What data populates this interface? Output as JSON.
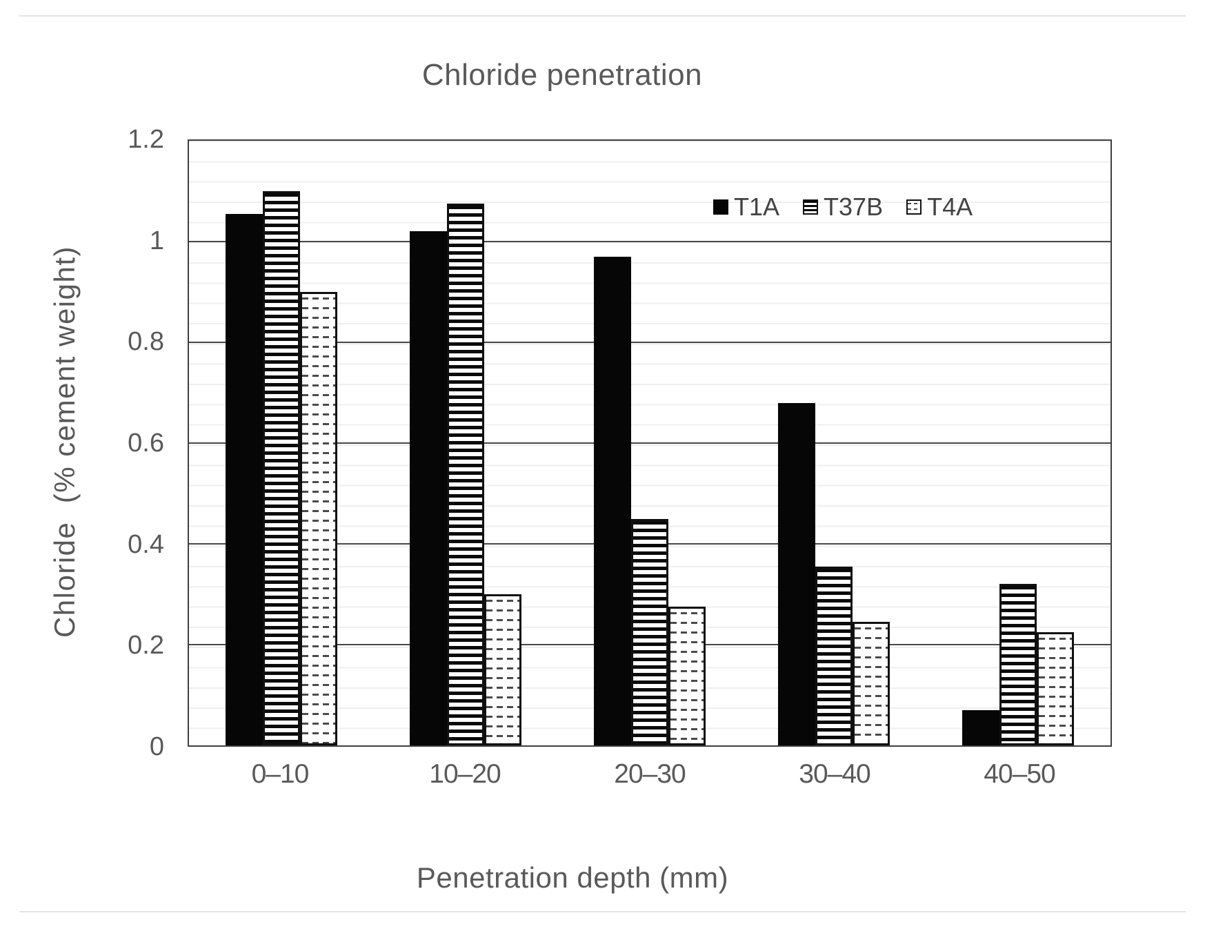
{
  "chart_data": {
    "type": "bar",
    "title": "Chloride penetration",
    "xlabel": "Penetration depth (mm)",
    "ylabel": "Chloride  (% cement weight)",
    "categories": [
      "0–10",
      "10–20",
      "20–30",
      "30–40",
      "40–50"
    ],
    "series": [
      {
        "name": "T1A",
        "pattern": "solid",
        "values": [
          1.055,
          1.02,
          0.97,
          0.68,
          0.07
        ]
      },
      {
        "name": "T37B",
        "pattern": "hstripes",
        "values": [
          1.1,
          1.075,
          0.45,
          0.355,
          0.32
        ]
      },
      {
        "name": "T4A",
        "pattern": "dots",
        "values": [
          0.9,
          0.3,
          0.275,
          0.245,
          0.225
        ]
      }
    ],
    "ylim": [
      0,
      1.2
    ],
    "ytick_interval": 0.2,
    "yticks": [
      "1.2",
      "1",
      "0.8",
      "0.6",
      "0.4",
      "0.2",
      "0"
    ],
    "minor_grid_interval": 0.04,
    "grid": "major+minor",
    "legend_position": "inside-top-right"
  },
  "colors": {
    "text": "#595959",
    "major_gridline": "#474747",
    "minor_gridline": "#efefef",
    "plot_border": "#3f3f3f",
    "bar_fill": "#060606",
    "background": "#ffffff"
  }
}
